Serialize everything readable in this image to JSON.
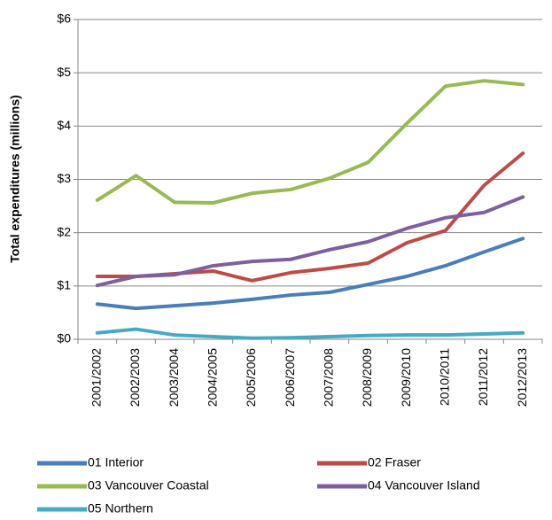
{
  "chart_data": {
    "type": "line",
    "y_label": "Total expenditures (millions)",
    "categories": [
      "2001/2002",
      "2002/2003",
      "2003/2004",
      "2004/2005",
      "2005/2006",
      "2006/2007",
      "2007/2008",
      "2008/2009",
      "2009/2010",
      "2010/2011",
      "2011/2012",
      "2012/2013"
    ],
    "series": [
      {
        "name": "01 Interior",
        "color": "#4a7ebb",
        "values": [
          0.66,
          0.58,
          0.63,
          0.68,
          0.75,
          0.83,
          0.88,
          1.03,
          1.18,
          1.38,
          1.64,
          1.89
        ]
      },
      {
        "name": "02 Fraser",
        "color": "#be4b48",
        "values": [
          1.18,
          1.18,
          1.23,
          1.28,
          1.1,
          1.25,
          1.33,
          1.43,
          1.81,
          2.04,
          2.89,
          3.49
        ]
      },
      {
        "name": "03 Vancouver Coastal",
        "color": "#98b954",
        "values": [
          2.61,
          3.07,
          2.57,
          2.56,
          2.74,
          2.81,
          3.02,
          3.32,
          4.05,
          4.75,
          4.85,
          4.78
        ]
      },
      {
        "name": "04 Vancouver Island",
        "color": "#7d60a0",
        "values": [
          1.01,
          1.18,
          1.21,
          1.38,
          1.46,
          1.5,
          1.68,
          1.83,
          2.08,
          2.28,
          2.38,
          2.67
        ]
      },
      {
        "name": "05 Northern",
        "color": "#46aac5",
        "values": [
          0.12,
          0.19,
          0.08,
          0.05,
          0.02,
          0.03,
          0.05,
          0.07,
          0.08,
          0.08,
          0.1,
          0.12
        ]
      }
    ],
    "ylim": [
      0,
      6
    ],
    "yticks": [
      {
        "value": 0,
        "label": "$0"
      },
      {
        "value": 1,
        "label": "$1"
      },
      {
        "value": 2,
        "label": "$2"
      },
      {
        "value": 3,
        "label": "$3"
      },
      {
        "value": 4,
        "label": "$4"
      },
      {
        "value": 5,
        "label": "$5"
      },
      {
        "value": 6,
        "label": "$6"
      }
    ],
    "grid": true,
    "legend": "bottom"
  }
}
